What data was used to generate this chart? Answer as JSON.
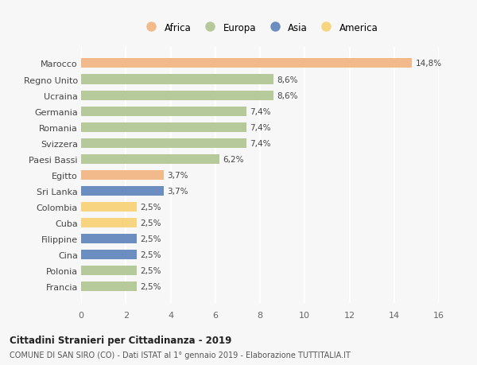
{
  "countries": [
    "Francia",
    "Polonia",
    "Cina",
    "Filippine",
    "Cuba",
    "Colombia",
    "Sri Lanka",
    "Egitto",
    "Paesi Bassi",
    "Svizzera",
    "Romania",
    "Germania",
    "Ucraina",
    "Regno Unito",
    "Marocco"
  ],
  "values": [
    2.5,
    2.5,
    2.5,
    2.5,
    2.5,
    2.5,
    3.7,
    3.7,
    6.2,
    7.4,
    7.4,
    7.4,
    8.6,
    8.6,
    14.8
  ],
  "labels": [
    "2,5%",
    "2,5%",
    "2,5%",
    "2,5%",
    "2,5%",
    "2,5%",
    "3,7%",
    "3,7%",
    "6,2%",
    "7,4%",
    "7,4%",
    "7,4%",
    "8,6%",
    "8,6%",
    "14,8%"
  ],
  "continents": [
    "Europa",
    "Europa",
    "Asia",
    "Asia",
    "America",
    "America",
    "Asia",
    "Africa",
    "Europa",
    "Europa",
    "Europa",
    "Europa",
    "Europa",
    "Europa",
    "Africa"
  ],
  "bar_africa": "#F2B98B",
  "bar_europa": "#B5C99A",
  "bar_asia": "#6B8DBF",
  "bar_america": "#F7D580",
  "background_color": "#F7F7F7",
  "grid_color": "#FFFFFF",
  "title1": "Cittadini Stranieri per Cittadinanza - 2019",
  "title2": "COMUNE DI SAN SIRO (CO) - Dati ISTAT al 1° gennaio 2019 - Elaborazione TUTTITALIA.IT",
  "xlim": [
    0,
    16
  ],
  "xticks": [
    0,
    2,
    4,
    6,
    8,
    10,
    12,
    14,
    16
  ],
  "legend_order": [
    "Africa",
    "Europa",
    "Asia",
    "America"
  ]
}
